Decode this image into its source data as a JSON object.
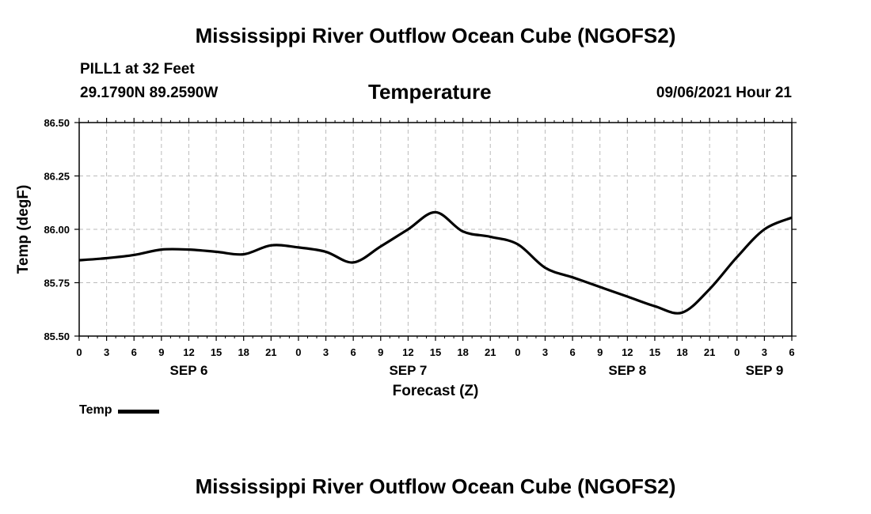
{
  "header": {
    "title": "Mississippi River Outflow Ocean Cube (NGOFS2)",
    "station": "PILL1 at 32 Feet",
    "coordinates": "29.1790N  89.2590W",
    "variable": "Temperature",
    "datetime": "09/06/2021 Hour 21"
  },
  "footer": {
    "title": "Mississippi River Outflow Ocean Cube (NGOFS2)"
  },
  "legend": {
    "label": "Temp"
  },
  "colors": {
    "line": "#000000",
    "grid": "#bbbbbb",
    "axis": "#000000"
  },
  "chart_data": {
    "type": "line",
    "title": "Temperature",
    "xlabel": "Forecast (Z)",
    "ylabel": "Temp (degF)",
    "xlim": [
      0,
      78
    ],
    "ylim": [
      85.5,
      86.5
    ],
    "yticks": [
      85.5,
      85.75,
      86.0,
      86.25,
      86.5
    ],
    "ytick_labels": [
      "85.50",
      "85.75",
      "86.00",
      "86.25",
      "86.50"
    ],
    "xtick_hours": [
      0,
      3,
      6,
      9,
      12,
      15,
      18,
      21,
      24,
      27,
      30,
      33,
      36,
      39,
      42,
      45,
      48,
      51,
      54,
      57,
      60,
      63,
      66,
      69,
      72,
      75,
      78
    ],
    "xtick_labels": [
      "0",
      "3",
      "6",
      "9",
      "12",
      "15",
      "18",
      "21",
      "0",
      "3",
      "6",
      "9",
      "12",
      "15",
      "18",
      "21",
      "0",
      "3",
      "6",
      "9",
      "12",
      "15",
      "18",
      "21",
      "0",
      "3",
      "6"
    ],
    "date_labels": [
      {
        "label": "SEP 6",
        "hour": 12
      },
      {
        "label": "SEP 7",
        "hour": 36
      },
      {
        "label": "SEP 8",
        "hour": 60
      },
      {
        "label": "SEP 9",
        "hour": 75
      }
    ],
    "grid": true,
    "series": [
      {
        "name": "Temp",
        "x": [
          0,
          3,
          6,
          9,
          12,
          15,
          18,
          21,
          24,
          27,
          30,
          33,
          36,
          39,
          42,
          45,
          48,
          51,
          54,
          57,
          60,
          63,
          66,
          69,
          72,
          75,
          78
        ],
        "values": [
          85.855,
          85.865,
          85.88,
          85.905,
          85.905,
          85.895,
          85.883,
          85.925,
          85.915,
          85.895,
          85.845,
          85.92,
          86.0,
          86.08,
          85.99,
          85.965,
          85.93,
          85.82,
          85.775,
          85.73,
          85.685,
          85.64,
          85.61,
          85.72,
          85.87,
          86.0,
          86.055
        ]
      }
    ]
  }
}
